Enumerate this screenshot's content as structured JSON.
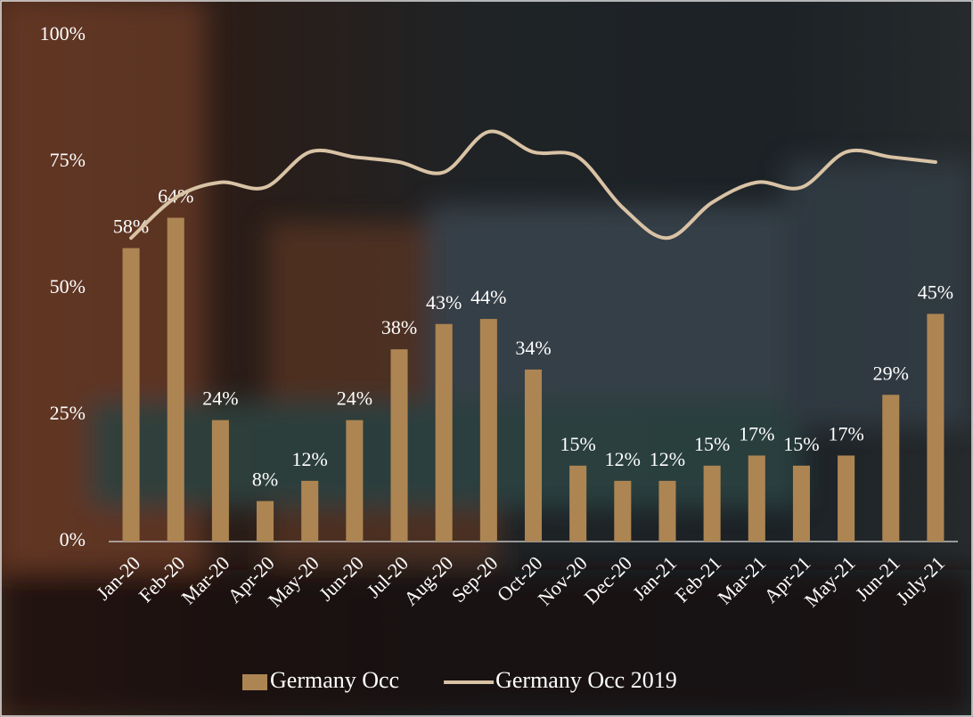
{
  "chart_data": {
    "type": "bar",
    "categories": [
      "Jan-20",
      "Feb-20",
      "Mar-20",
      "Apr-20",
      "May-20",
      "Jun-20",
      "Jul-20",
      "Aug-20",
      "Sep-20",
      "Oct-20",
      "Nov-20",
      "Dec-20",
      "Jan-21",
      "Feb-21",
      "Mar-21",
      "Apr-21",
      "May-21",
      "Jun-21",
      "July-21"
    ],
    "series": [
      {
        "name": "Germany Occ",
        "type": "bar",
        "color": "#ad8553",
        "values": [
          58,
          64,
          24,
          8,
          12,
          24,
          38,
          43,
          44,
          34,
          15,
          12,
          12,
          15,
          17,
          15,
          17,
          29,
          45
        ],
        "value_labels": [
          "58%",
          "64%",
          "24%",
          "8%",
          "12%",
          "24%",
          "38%",
          "43%",
          "44%",
          "34%",
          "15%",
          "12%",
          "12%",
          "15%",
          "17%",
          "15%",
          "17%",
          "29%",
          "45%"
        ]
      },
      {
        "name": "Germany Occ 2019",
        "type": "line",
        "color": "#d9c3a5",
        "values": [
          60,
          68,
          71,
          70,
          77,
          76,
          75,
          73,
          81,
          77,
          76,
          66,
          60,
          67,
          71,
          70,
          77,
          76,
          75
        ]
      }
    ],
    "ylim": [
      0,
      100
    ],
    "yticks": [
      {
        "value": 0,
        "label": "0%"
      },
      {
        "value": 25,
        "label": "25%"
      },
      {
        "value": 50,
        "label": "50%"
      },
      {
        "value": 75,
        "label": "75%"
      },
      {
        "value": 100,
        "label": "100%"
      }
    ],
    "legend": "bottom"
  }
}
